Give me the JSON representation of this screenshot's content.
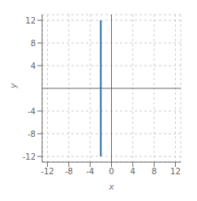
{
  "chart_data": {
    "type": "line",
    "x": [
      -2,
      -2
    ],
    "values": [
      -12,
      12
    ],
    "color": "#2E6E9E",
    "xlabel": "x",
    "ylabel": "y",
    "xlim": [
      -13,
      13
    ],
    "ylim": [
      -13,
      13
    ],
    "xticks": [
      -12,
      -8,
      -4,
      0,
      4,
      8,
      12
    ],
    "yticks": [
      -12,
      -8,
      -4,
      4,
      8,
      12
    ],
    "grid": true
  }
}
